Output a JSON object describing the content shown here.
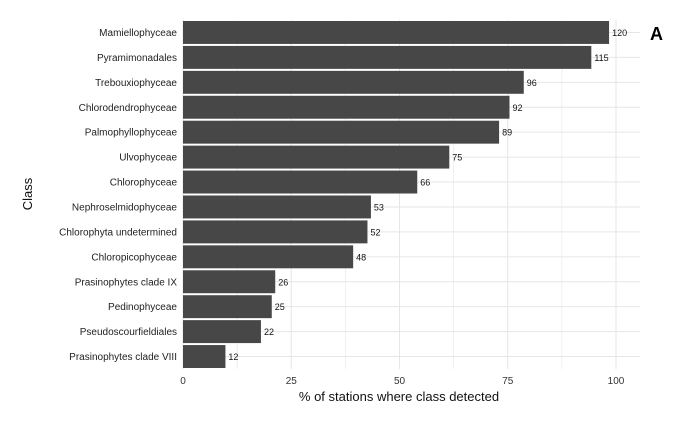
{
  "panel_tag": "A",
  "colors": {
    "bar": "#474747",
    "grid": "#e6e6e6"
  },
  "chart_data": {
    "type": "bar",
    "orientation": "horizontal",
    "xlabel": "% of stations where class detected",
    "ylabel": "Class",
    "xlim": [
      0,
      105
    ],
    "xticks": [
      0,
      25,
      50,
      75,
      100
    ],
    "grid": true,
    "categories": [
      "Mamiellophyceae",
      "Pyramimonadales",
      "Trebouxiophyceae",
      "Chlorodendrophyceae",
      "Palmophyllophyceae",
      "Ulvophyceae",
      "Chlorophyceae",
      "Nephroselmidophyceae",
      "Chlorophyta undetermined",
      "Chloropicophyceae",
      "Prasinophytes clade IX",
      "Pedinophyceae",
      "Pseudoscourfieldiales",
      "Prasinophytes clade VIII"
    ],
    "values": [
      98.4,
      94.3,
      78.7,
      75.4,
      73.0,
      61.5,
      54.1,
      43.4,
      42.6,
      39.3,
      21.3,
      20.5,
      18.0,
      9.8
    ],
    "data_labels": [
      "120",
      "115",
      "96",
      "92",
      "89",
      "75",
      "66",
      "53",
      "52",
      "48",
      "26",
      "25",
      "22",
      "12"
    ]
  }
}
